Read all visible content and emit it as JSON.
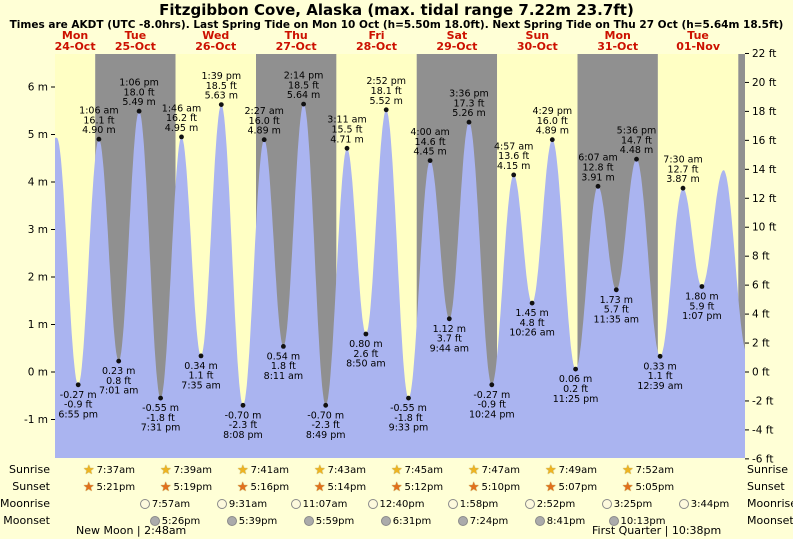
{
  "title": "Fitzgibbon Cove, Alaska (max. tidal range 7.22m 23.7ft)",
  "subtitle": "Times are AKDT (UTC -8.0hrs). Last Spring Tide on Mon 10 Oct (h=5.50m 18.0ft). Next Spring Tide on Thu 27 Oct (h=5.64m 18.5ft)",
  "colors": {
    "background": "#ffffd6",
    "band_yellow": "#ffffc4",
    "band_gray": "#909090",
    "tide_fill": "#aab4f0",
    "date_red": "#cc1100",
    "sun_star": "#eeb422",
    "sunset_star": "#e2701d",
    "moonrise_fill": "#fdf9dd",
    "moonset_fill": "#ababab"
  },
  "days": [
    {
      "name": "Mon",
      "date": "24-Oct"
    },
    {
      "name": "Tue",
      "date": "25-Oct"
    },
    {
      "name": "Wed",
      "date": "26-Oct"
    },
    {
      "name": "Thu",
      "date": "27-Oct"
    },
    {
      "name": "Fri",
      "date": "28-Oct"
    },
    {
      "name": "Sat",
      "date": "29-Oct"
    },
    {
      "name": "Sun",
      "date": "30-Oct"
    },
    {
      "name": "Mon",
      "date": "31-Oct"
    },
    {
      "name": "Tue",
      "date": "01-Nov"
    }
  ],
  "y_axis": {
    "left_ticks": [
      {
        "value": 6,
        "label": "6 m"
      },
      {
        "value": 5,
        "label": "5 m"
      },
      {
        "value": 4,
        "label": "4 m"
      },
      {
        "value": 3,
        "label": "3 m"
      },
      {
        "value": 2,
        "label": "2 m"
      },
      {
        "value": 1,
        "label": "1 m"
      },
      {
        "value": 0,
        "label": "0 m"
      },
      {
        "value": -1,
        "label": "-1 m"
      }
    ],
    "right_ticks": [
      {
        "value": 22,
        "label": "22 ft"
      },
      {
        "value": 20,
        "label": "20 ft"
      },
      {
        "value": 18,
        "label": "18 ft"
      },
      {
        "value": 16,
        "label": "16 ft"
      },
      {
        "value": 14,
        "label": "14 ft"
      },
      {
        "value": 12,
        "label": "12 ft"
      },
      {
        "value": 10,
        "label": "10 ft"
      },
      {
        "value": 8,
        "label": "8 ft"
      },
      {
        "value": 6,
        "label": "6 ft"
      },
      {
        "value": 4,
        "label": "4 ft"
      },
      {
        "value": 2,
        "label": "2 ft"
      },
      {
        "value": 0,
        "label": "0 ft"
      },
      {
        "value": -2,
        "label": "-2 ft"
      },
      {
        "value": -4,
        "label": "-4 ft"
      },
      {
        "value": -6,
        "label": "-6 ft"
      }
    ]
  },
  "chart_data": {
    "type": "area",
    "ylabel_left": "m",
    "ylabel_right": "ft",
    "ylim_m": [
      -1.81,
      6.7
    ],
    "ylim_ft": [
      -6,
      22
    ],
    "tide_events": [
      {
        "day": "Mon 24-Oct",
        "type": "low",
        "time": "6:55 pm",
        "t": 18.92,
        "height_m": -0.27,
        "m_label": "-0.27 m",
        "ft_label": "-0.9 ft"
      },
      {
        "day": "Tue 25-Oct",
        "type": "high",
        "time": "1:06 am",
        "t": 25.1,
        "height_m": 4.9,
        "m_label": "4.90 m",
        "ft_label": "16.1 ft"
      },
      {
        "day": "Tue 25-Oct",
        "type": "low",
        "time": "7:01 am",
        "t": 31.02,
        "height_m": 0.23,
        "m_label": "0.23 m",
        "ft_label": "0.8 ft"
      },
      {
        "day": "Tue 25-Oct",
        "type": "high",
        "time": "1:06 pm",
        "t": 37.1,
        "height_m": 5.49,
        "m_label": "5.49 m",
        "ft_label": "18.0 ft"
      },
      {
        "day": "Tue 25-Oct",
        "type": "low",
        "time": "7:31 pm",
        "t": 43.52,
        "height_m": -0.55,
        "m_label": "-0.55 m",
        "ft_label": "-1.8 ft"
      },
      {
        "day": "Wed 26-Oct",
        "type": "high",
        "time": "1:46 am",
        "t": 49.77,
        "height_m": 4.95,
        "m_label": "4.95 m",
        "ft_label": "16.2 ft"
      },
      {
        "day": "Wed 26-Oct",
        "type": "low",
        "time": "7:35 am",
        "t": 55.58,
        "height_m": 0.34,
        "m_label": "0.34 m",
        "ft_label": "1.1 ft"
      },
      {
        "day": "Wed 26-Oct",
        "type": "high",
        "time": "1:39 pm",
        "t": 61.65,
        "height_m": 5.63,
        "m_label": "5.63 m",
        "ft_label": "18.5 ft"
      },
      {
        "day": "Wed 26-Oct",
        "type": "low",
        "time": "8:08 pm",
        "t": 68.13,
        "height_m": -0.7,
        "m_label": "-0.70 m",
        "ft_label": "-2.3 ft"
      },
      {
        "day": "Thu 27-Oct",
        "type": "high",
        "time": "2:27 am",
        "t": 74.45,
        "height_m": 4.89,
        "m_label": "4.89 m",
        "ft_label": "16.0 ft"
      },
      {
        "day": "Thu 27-Oct",
        "type": "low",
        "time": "8:11 am",
        "t": 80.18,
        "height_m": 0.54,
        "m_label": "0.54 m",
        "ft_label": "1.8 ft"
      },
      {
        "day": "Thu 27-Oct",
        "type": "high",
        "time": "2:14 pm",
        "t": 86.23,
        "height_m": 5.64,
        "m_label": "5.64 m",
        "ft_label": "18.5 ft"
      },
      {
        "day": "Thu 27-Oct",
        "type": "low",
        "time": "8:49 pm",
        "t": 92.82,
        "height_m": -0.7,
        "m_label": "-0.70 m",
        "ft_label": "-2.3 ft"
      },
      {
        "day": "Fri 28-Oct",
        "type": "high",
        "time": "3:11 am",
        "t": 99.18,
        "height_m": 4.71,
        "m_label": "4.71 m",
        "ft_label": "15.5 ft"
      },
      {
        "day": "Fri 28-Oct",
        "type": "low",
        "time": "8:50 am",
        "t": 104.83,
        "height_m": 0.8,
        "m_label": "0.80 m",
        "ft_label": "2.6 ft"
      },
      {
        "day": "Fri 28-Oct",
        "type": "high",
        "time": "2:52 pm",
        "t": 110.87,
        "height_m": 5.52,
        "m_label": "5.52 m",
        "ft_label": "18.1 ft"
      },
      {
        "day": "Fri 28-Oct",
        "type": "low",
        "time": "9:33 pm",
        "t": 117.55,
        "height_m": -0.55,
        "m_label": "-0.55 m",
        "ft_label": "-1.8 ft"
      },
      {
        "day": "Sat 29-Oct",
        "type": "high",
        "time": "4:00 am",
        "t": 124.0,
        "height_m": 4.45,
        "m_label": "4.45 m",
        "ft_label": "14.6 ft"
      },
      {
        "day": "Sat 29-Oct",
        "type": "low",
        "time": "9:44 am",
        "t": 129.73,
        "height_m": 1.12,
        "m_label": "1.12 m",
        "ft_label": "3.7 ft"
      },
      {
        "day": "Sat 29-Oct",
        "type": "high",
        "time": "3:36 pm",
        "t": 135.6,
        "height_m": 5.26,
        "m_label": "5.26 m",
        "ft_label": "17.3 ft"
      },
      {
        "day": "Sat 29-Oct",
        "type": "low",
        "time": "10:24 pm",
        "t": 142.4,
        "height_m": -0.27,
        "m_label": "-0.27 m",
        "ft_label": "-0.9 ft"
      },
      {
        "day": "Sun 30-Oct",
        "type": "high",
        "time": "4:57 am",
        "t": 148.95,
        "height_m": 4.15,
        "m_label": "4.15 m",
        "ft_label": "13.6 ft"
      },
      {
        "day": "Sun 30-Oct",
        "type": "low",
        "time": "10:26 am",
        "t": 154.43,
        "height_m": 1.45,
        "m_label": "1.45 m",
        "ft_label": "4.8 ft"
      },
      {
        "day": "Sun 30-Oct",
        "type": "high",
        "time": "4:29 pm",
        "t": 160.48,
        "height_m": 4.89,
        "m_label": "4.89 m",
        "ft_label": "16.0 ft"
      },
      {
        "day": "Sun 30-Oct",
        "type": "low",
        "time": "11:25 pm",
        "t": 167.42,
        "height_m": 0.06,
        "m_label": "0.06 m",
        "ft_label": "0.2 ft"
      },
      {
        "day": "Mon 31-Oct",
        "type": "high",
        "time": "6:07 am",
        "t": 174.12,
        "height_m": 3.91,
        "m_label": "3.91 m",
        "ft_label": "12.8 ft"
      },
      {
        "day": "Mon 31-Oct",
        "type": "low",
        "time": "11:35 am",
        "t": 179.58,
        "height_m": 1.73,
        "m_label": "1.73 m",
        "ft_label": "5.7 ft"
      },
      {
        "day": "Mon 31-Oct",
        "type": "high",
        "time": "5:36 pm",
        "t": 185.6,
        "height_m": 4.48,
        "m_label": "4.48 m",
        "ft_label": "14.7 ft"
      },
      {
        "day": "Tue 01-Nov",
        "type": "low",
        "time": "12:39 am",
        "t": 192.65,
        "height_m": 0.33,
        "m_label": "0.33 m",
        "ft_label": "1.1 ft"
      },
      {
        "day": "Tue 01-Nov",
        "type": "high",
        "time": "7:30 am",
        "t": 199.5,
        "height_m": 3.87,
        "m_label": "3.87 m",
        "ft_label": "12.7 ft"
      },
      {
        "day": "Tue 01-Nov",
        "type": "low",
        "time": "1:07 pm",
        "t": 205.12,
        "height_m": 1.8,
        "m_label": "1.80 m",
        "ft_label": "5.9 ft"
      }
    ]
  },
  "astro": {
    "rows": [
      {
        "label": "Sunrise",
        "icon": "sunrise-star-icon",
        "times": [
          "7:37am",
          "7:39am",
          "7:41am",
          "7:43am",
          "7:45am",
          "7:47am",
          "7:49am",
          "7:52am"
        ]
      },
      {
        "label": "Sunset",
        "icon": "sunset-star-icon",
        "times": [
          "5:21pm",
          "5:19pm",
          "5:16pm",
          "5:14pm",
          "5:12pm",
          "5:10pm",
          "5:07pm",
          "5:05pm"
        ]
      },
      {
        "label": "Moonrise",
        "icon": "moonrise-icon",
        "times": [
          "7:57am",
          "9:31am",
          "11:07am",
          "12:40pm",
          "1:58pm",
          "2:52pm",
          "3:25pm",
          "3:44pm"
        ]
      },
      {
        "label": "Moonset",
        "icon": "moonset-icon",
        "times": [
          "5:26pm",
          "5:39pm",
          "5:59pm",
          "6:31pm",
          "7:24pm",
          "8:41pm",
          "10:13pm"
        ]
      }
    ]
  },
  "footer": {
    "left": "New Moon | 2:48am",
    "right": "First Quarter | 10:38pm"
  }
}
